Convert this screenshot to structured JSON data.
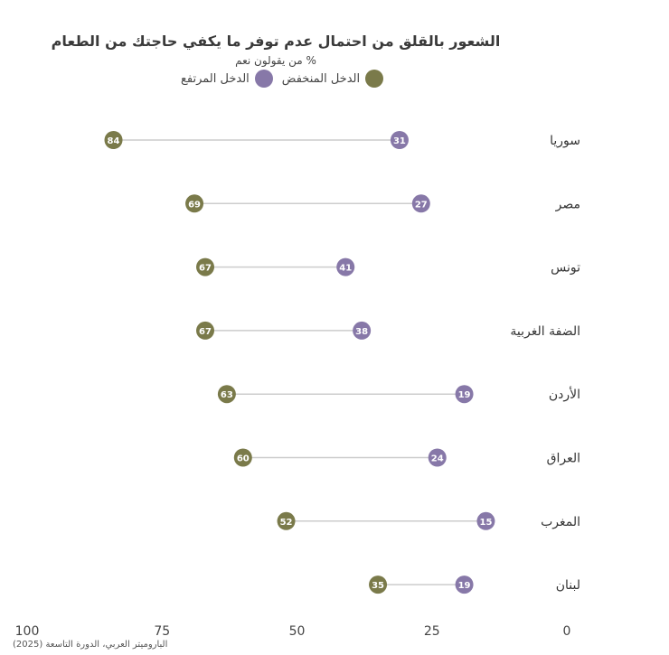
{
  "chart_data": {
    "type": "dumbbell",
    "title": "الشعور بالقلق من احتمال عدم توفر ما يكفي حاجتك من الطعام",
    "subtitle": "% من يقولون نعم",
    "categories": [
      "سوريا",
      "مصر",
      "تونس",
      "الضفة الغربية",
      "الأردن",
      "العراق",
      "المغرب",
      "لبنان"
    ],
    "series": [
      {
        "name": "الدخل المنخفض",
        "color": "#7a7a4a",
        "values": [
          84,
          69,
          67,
          67,
          63,
          60,
          52,
          35
        ]
      },
      {
        "name": "الدخل المرتفع",
        "color": "#8778a8",
        "values": [
          31,
          27,
          41,
          38,
          19,
          24,
          15,
          19
        ]
      }
    ],
    "xlim": [
      100,
      0
    ],
    "x_ticks": [
      100,
      75,
      50,
      25,
      0
    ],
    "connector_color": "#cccccc",
    "grid": false,
    "legend_position": "top"
  },
  "source": "الباروميتر العربي، الدورة التاسعة (2025)"
}
